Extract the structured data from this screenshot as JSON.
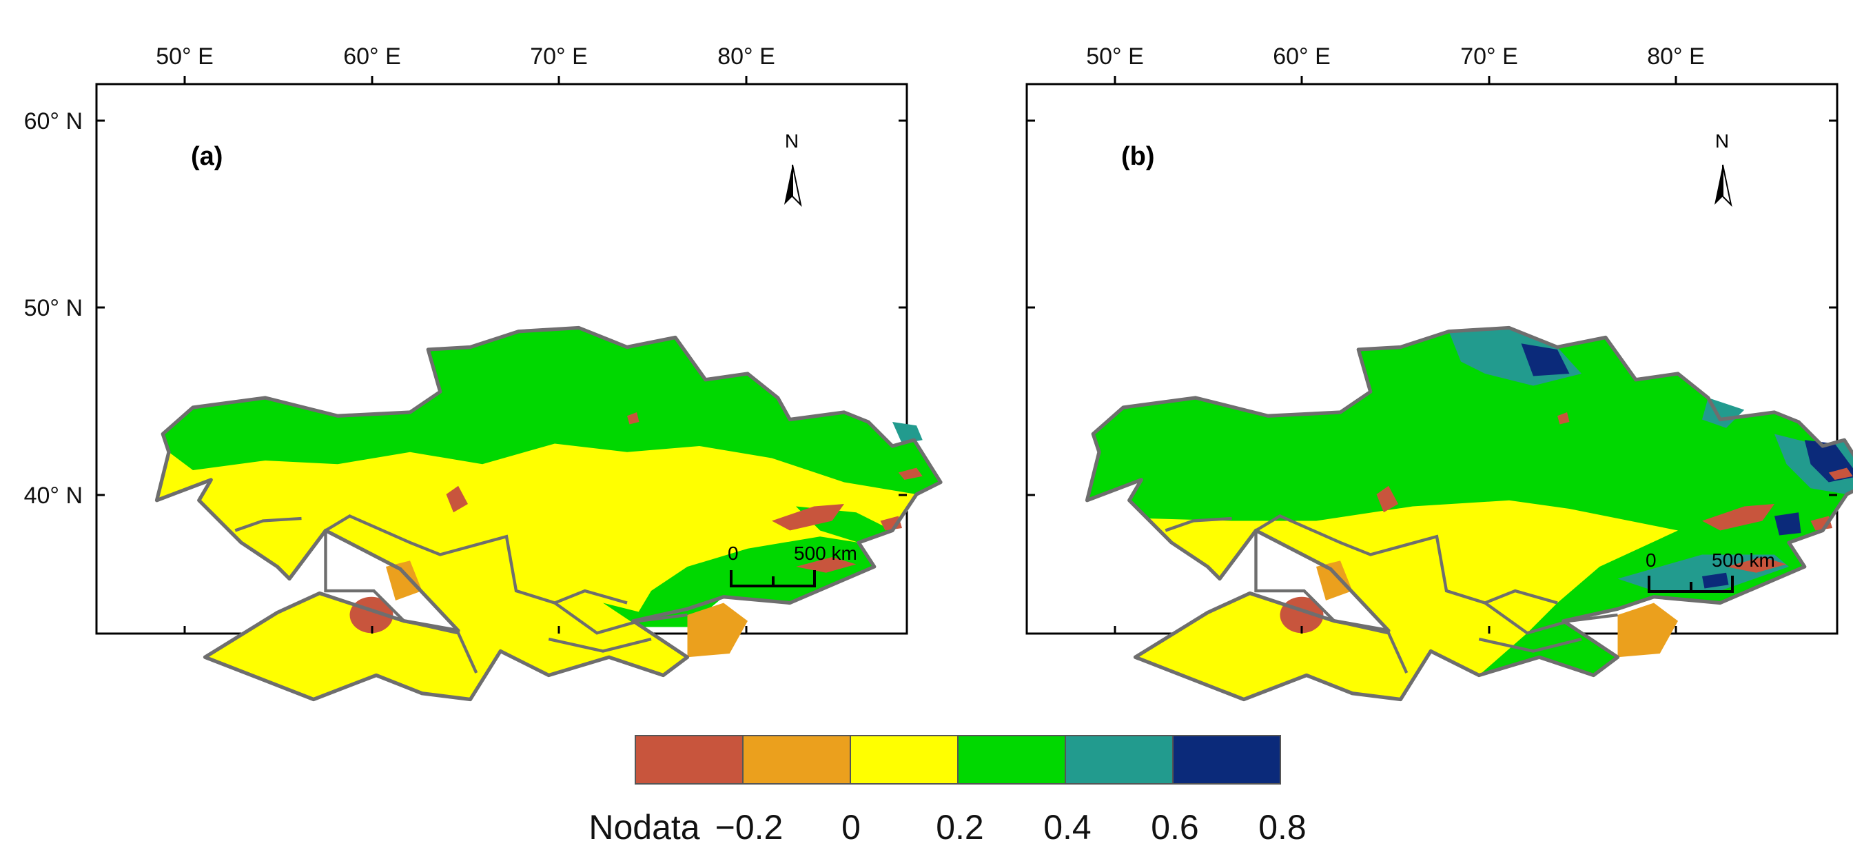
{
  "figure": {
    "longitude_labels": [
      "50° E",
      "60° E",
      "70° E",
      "80° E"
    ],
    "latitude_labels": [
      "60° N",
      "50° N",
      "40° N"
    ]
  },
  "panels": [
    {
      "label": "(a)",
      "north": "N",
      "scale_zero": "0",
      "scale_max": "500 km"
    },
    {
      "label": "(b)",
      "north": "N",
      "scale_zero": "0",
      "scale_max": "500 km"
    }
  ],
  "legend": {
    "labels": [
      "Nodata",
      "−0.2",
      "0",
      "0.2",
      "0.4",
      "0.6",
      "0.8"
    ],
    "colors": [
      "#c8553d",
      "#eba01d",
      "#ffff00",
      "#00d800",
      "#229b8e",
      "#0b2a7a"
    ]
  },
  "colors": {
    "border": "#6e6e6e",
    "nodata": "#c8553d",
    "class_neg": "#eba01d",
    "class_low": "#ffff00",
    "class_mid": "#00d800",
    "class_high": "#229b8e",
    "class_top": "#0b2a7a"
  }
}
